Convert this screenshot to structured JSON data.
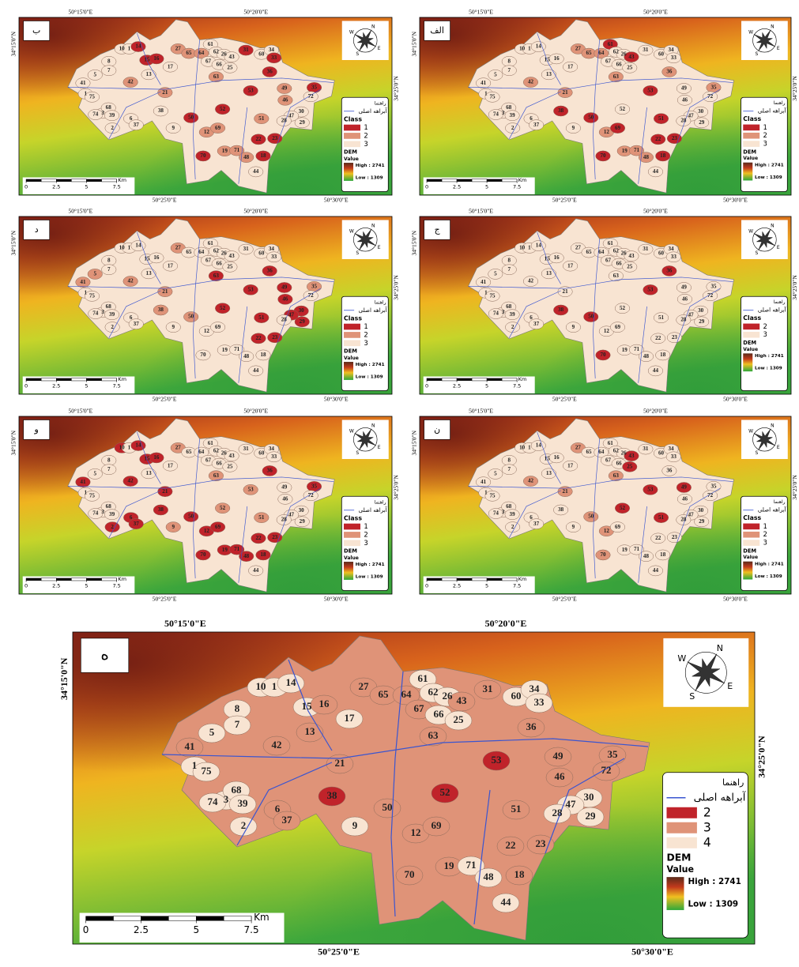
{
  "basins": [
    "10",
    "1",
    "14",
    "15",
    "16",
    "17",
    "8",
    "27",
    "65",
    "64",
    "61",
    "62",
    "26",
    "43",
    "31",
    "60",
    "34",
    "33",
    "67",
    "66",
    "25",
    "5",
    "7",
    "13",
    "63",
    "36",
    "41",
    "42",
    "21",
    "53",
    "49",
    "35",
    "72",
    "1",
    "75",
    "46",
    "38",
    "52",
    "30",
    "47",
    "29",
    "28",
    "51",
    "3",
    "68",
    "39",
    "74",
    "6",
    "37",
    "2",
    "50",
    "9",
    "12",
    "69",
    "22",
    "23",
    "19",
    "71",
    "48",
    "18",
    "70",
    "44"
  ],
  "compass": [
    "N",
    "E",
    "S",
    "W"
  ],
  "panels": [
    {
      "letter": "ب",
      "coords": {
        "top_left": "50°15'0\"E",
        "top_mid": "50°20'0\"E",
        "bottom_mid": "50°25'0\"E",
        "bottom_right": "50°30'0\"E",
        "left": "34°15'0\"N",
        "right": "34°25'0\"N"
      },
      "legend": {
        "title": "راهنما",
        "river": "آبراهه اصلی",
        "class_title": "Class",
        "items": [
          {
            "label": "1",
            "color": "#c0232a",
            "basins": [
              "14",
              "15",
              "16",
              "36",
              "53",
              "35",
              "50",
              "70",
              "22",
              "23",
              "18",
              "52",
              "31",
              "33"
            ]
          },
          {
            "label": "2",
            "color": "#df9378",
            "basins": [
              "27",
              "65",
              "64",
              "63",
              "21",
              "42",
              "19",
              "71",
              "48",
              "12",
              "69",
              "51",
              "46",
              "49"
            ]
          },
          {
            "label": "3",
            "color": "#f8e4d2"
          }
        ],
        "dem": "DEM",
        "value": "Value",
        "high": "High : 2741",
        "low": "Low : 1309"
      },
      "scale": {
        "ticks": [
          0,
          2.5,
          5,
          7.5
        ],
        "unit": "Km"
      }
    },
    {
      "letter": "الف",
      "coords": {
        "top_left": "50°15'0\"E",
        "top_mid": "50°20'0\"E",
        "bottom_mid": "50°25'0\"E",
        "bottom_right": "50°30'0\"E",
        "left": "34°15'0\"N",
        "right": "34°25'0\"N"
      },
      "legend": {
        "title": "راهنما",
        "river": "آبراهه اصلی",
        "class_title": "Class",
        "items": [
          {
            "label": "1",
            "color": "#c0232a",
            "basins": [
              "53",
              "38",
              "50",
              "70",
              "69",
              "22",
              "23",
              "18",
              "51",
              "61",
              "43"
            ]
          },
          {
            "label": "2",
            "color": "#df9378",
            "basins": [
              "21",
              "42",
              "27",
              "65",
              "64",
              "63",
              "36",
              "35",
              "12",
              "71",
              "19",
              "48"
            ]
          },
          {
            "label": "3",
            "color": "#f8e4d2"
          }
        ],
        "dem": "DEM",
        "value": "Value",
        "high": "High : 2741",
        "low": "Low : 1309"
      },
      "scale": {
        "ticks": [
          0,
          2.5,
          5,
          7.5
        ],
        "unit": "Km"
      }
    },
    {
      "letter": "د",
      "coords": {
        "top_left": "50°15'0\"E",
        "top_mid": "50°20'0\"E",
        "bottom_mid": "50°25'0\"E",
        "bottom_right": "50°30'0\"E",
        "left": "34°15'0\"N",
        "right": "34°25'0\"N"
      },
      "legend": {
        "title": "راهنما",
        "river": "آبراهه اصلی",
        "class_title": "Class",
        "items": [
          {
            "label": "1",
            "color": "#c0232a",
            "basins": [
              "63",
              "36",
              "53",
              "52",
              "51",
              "46",
              "49",
              "22",
              "23",
              "30",
              "47",
              "29"
            ]
          },
          {
            "label": "2",
            "color": "#df9378",
            "basins": [
              "27",
              "21",
              "42",
              "41",
              "35",
              "50",
              "38",
              "5"
            ]
          },
          {
            "label": "3",
            "color": "#f8e4d2"
          }
        ],
        "dem": "DEM",
        "value": "Value",
        "high": "High : 2741",
        "low": "Low : 1309"
      },
      "scale": {
        "ticks": [
          0,
          2.5,
          5,
          7.5
        ],
        "unit": "Km"
      }
    },
    {
      "letter": "ج",
      "coords": {
        "top_left": "50°15'0\"E",
        "top_mid": "50°20'0\"E",
        "bottom_mid": "50°25'0\"E",
        "bottom_right": "50°30'0\"E",
        "left": "34°15'0\"N",
        "right": "34°25'0\"N"
      },
      "legend": {
        "title": "راهنما",
        "river": "آبراهه اصلی",
        "class_title": "Class",
        "items": [
          {
            "label": "2",
            "color": "#c0232a",
            "basins": [
              "36",
              "53",
              "38",
              "50",
              "70"
            ]
          },
          {
            "label": "3",
            "color": "#f8e4d2"
          }
        ],
        "dem": "DEM",
        "value": "Value",
        "high": "High : 2741",
        "low": "Low : 1309"
      },
      "scale": {
        "ticks": [
          0,
          2.5,
          5,
          7.5
        ],
        "unit": "Km"
      }
    },
    {
      "letter": "و",
      "coords": {
        "top_left": "50°15'0\"E",
        "top_mid": "50°20'0\"E",
        "bottom_mid": "50°25'0\"E",
        "bottom_right": "50°30'0\"E",
        "left": "34°15'0\"N",
        "right": "34°25'0\"N"
      },
      "legend": {
        "title": "راهنما",
        "river": "آبراهه اصلی",
        "class_title": "Class",
        "items": [
          {
            "label": "1",
            "color": "#c0232a",
            "basins": [
              "42",
              "21",
              "38",
              "50",
              "70",
              "69",
              "12",
              "19",
              "71",
              "48",
              "22",
              "23",
              "18",
              "14",
              "15",
              "16",
              "10",
              "41",
              "6",
              "37",
              "2",
              "35",
              "36"
            ]
          },
          {
            "label": "2",
            "color": "#df9378",
            "basins": [
              "27",
              "52",
              "53",
              "63",
              "51",
              "9"
            ]
          },
          {
            "label": "3",
            "color": "#f8e4d2"
          }
        ],
        "dem": "DEM",
        "value": "Value",
        "high": "High : 2741",
        "low": "Low : 1309"
      },
      "scale": {
        "ticks": [
          0,
          2.5,
          5,
          7.5
        ],
        "unit": "Km"
      }
    },
    {
      "letter": "ن",
      "coords": {
        "top_left": "50°15'0\"E",
        "top_mid": "50°20'0\"E",
        "bottom_mid": "50°25'0\"E",
        "bottom_right": "50°30'0\"E",
        "left": "34°15'0\"N",
        "right": "34°25'0\"N"
      },
      "legend": {
        "title": "راهنما",
        "river": "آبراهه اصلی",
        "class_title": "Class",
        "items": [
          {
            "label": "1",
            "color": "#c0232a",
            "basins": [
              "52",
              "53",
              "49",
              "51",
              "43",
              "25"
            ]
          },
          {
            "label": "2",
            "color": "#df9378",
            "basins": [
              "21",
              "42",
              "63",
              "12",
              "70",
              "50",
              "27"
            ]
          },
          {
            "label": "3",
            "color": "#f8e4d2"
          }
        ],
        "dem": "DEM",
        "value": "Value",
        "high": "High : 2741",
        "low": "Low : 1309"
      },
      "scale": {
        "ticks": [
          0,
          2.5,
          5,
          7.5
        ],
        "unit": "Km"
      }
    },
    {
      "letter": "ه",
      "coords": {
        "top_left": "50°15'0\"E",
        "top_mid": "50°20'0\"E",
        "bottom_mid": "50°25'0\"E",
        "bottom_right": "50°30'0\"E",
        "left": "34°15'0\"N",
        "right": "34°25'0\"N"
      },
      "legend": {
        "title": "راهنما",
        "river": "آبراهه اصلی",
        "items": [
          {
            "label": "2",
            "color": "#c0232a",
            "basins": [
              "38",
              "52",
              "53"
            ]
          },
          {
            "label": "3",
            "color": "#df9378"
          },
          {
            "label": "4",
            "color": "#f8e4d2",
            "basins": [
              "10",
              "1",
              "14",
              "15",
              "17",
              "8",
              "5",
              "7",
              "74",
              "3",
              "68",
              "39",
              "2",
              "9",
              "44",
              "48",
              "71",
              "28",
              "29",
              "30",
              "47",
              "34",
              "33",
              "60",
              "61",
              "62",
              "26",
              "25",
              "66",
              "75"
            ]
          }
        ],
        "dem": "DEM",
        "value": "Value",
        "high": "High : 2741",
        "low": "Low : 1309"
      },
      "scale": {
        "ticks": [
          0,
          2.5,
          5,
          7.5
        ],
        "unit": "Km"
      }
    }
  ]
}
